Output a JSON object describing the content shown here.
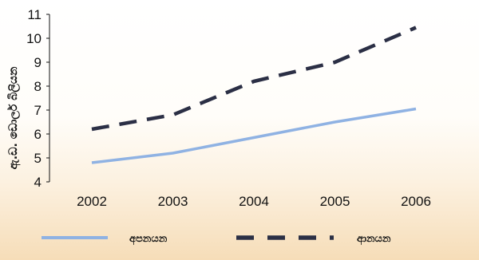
{
  "chart_data": {
    "type": "line",
    "categories": [
      "2002",
      "2003",
      "2004",
      "2005",
      "2006"
    ],
    "series": [
      {
        "name": "අපනයන",
        "values": [
          4.8,
          5.2,
          5.85,
          6.5,
          7.05
        ],
        "color": "#8fb2e3",
        "style": "solid"
      },
      {
        "name": "ආනයන",
        "values": [
          6.2,
          6.8,
          8.2,
          9.0,
          10.45
        ],
        "color": "#2b2f45",
        "style": "dashed"
      }
    ],
    "ylabel": "ඇ.ඩ. ඩොලර් බිලියන",
    "ylim": [
      4,
      11
    ],
    "yticks": [
      "4",
      "5",
      "6",
      "7",
      "8",
      "9",
      "10",
      "11"
    ],
    "grid": false,
    "legend": "bottom"
  }
}
